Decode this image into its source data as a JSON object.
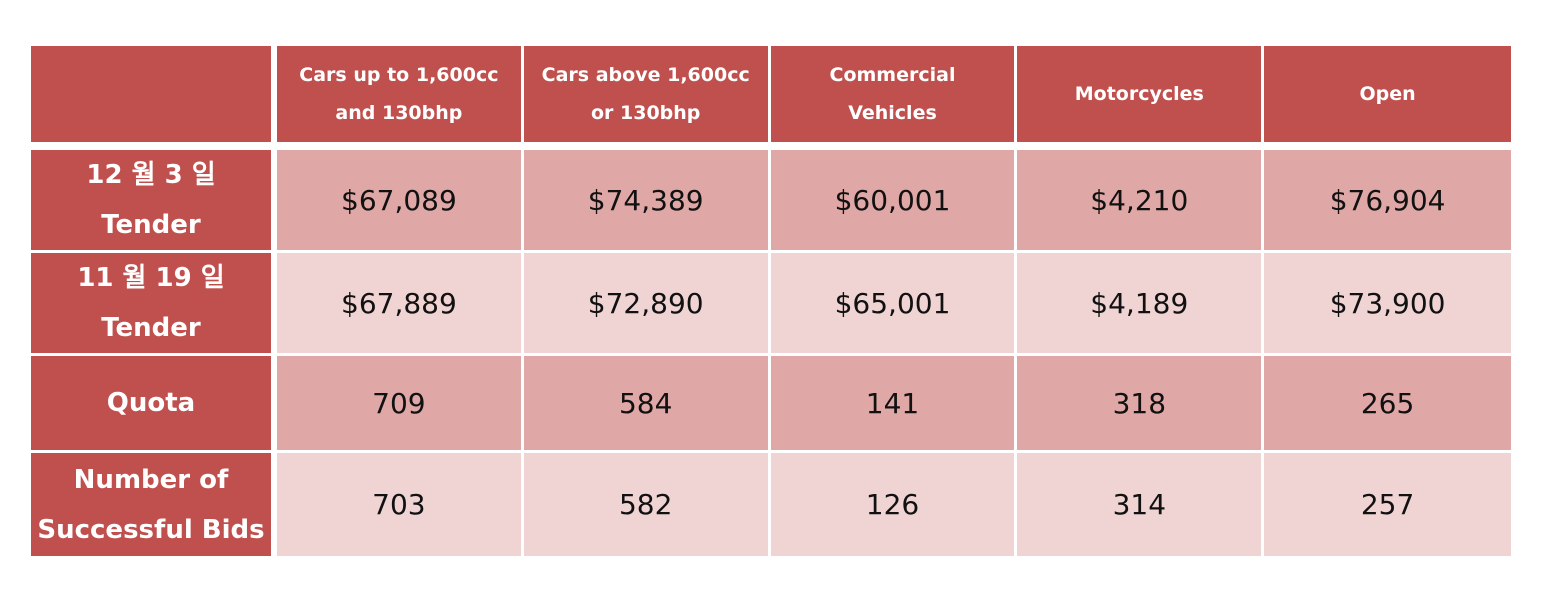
{
  "table": {
    "columns": [
      {
        "line1": "Cars up to 1,600cc",
        "line2": "and 130bhp"
      },
      {
        "line1": "Cars above 1,600cc",
        "line2": "or 130bhp"
      },
      {
        "line1": "Commercial",
        "line2": "Vehicles"
      },
      {
        "line1": "Motorcycles",
        "line2": ""
      },
      {
        "line1": "Open",
        "line2": ""
      }
    ],
    "rows": [
      {
        "label1": "12 월 3 일",
        "label2": "Tender",
        "band": "dark",
        "values": [
          "$67,089",
          "$74,389",
          "$60,001",
          "$4,210",
          "$76,904"
        ]
      },
      {
        "label1": "11 월 19 일",
        "label2": "Tender",
        "band": "light",
        "values": [
          "$67,889",
          "$72,890",
          "$65,001",
          "$4,189",
          "$73,900"
        ]
      },
      {
        "label1": "Quota",
        "label2": "",
        "band": "dark",
        "values": [
          "709",
          "584",
          "141",
          "318",
          "265"
        ]
      },
      {
        "label1": "Number of",
        "label2": "Successful Bids",
        "band": "light",
        "values": [
          "703",
          "582",
          "126",
          "314",
          "257"
        ]
      }
    ]
  },
  "colors": {
    "header_red": "#c0504d",
    "band_dark": "#dfa7a6",
    "band_light": "#f0d3d3",
    "header_text": "#ffffff"
  }
}
